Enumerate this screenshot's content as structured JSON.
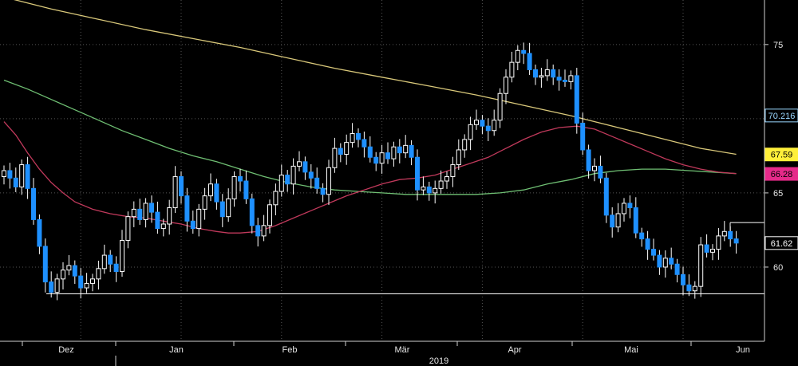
{
  "chart_data": {
    "type": "candlestick",
    "year_label": "2019",
    "x_ticks": [
      "Dez",
      "Jan",
      "Feb",
      "Mär",
      "Apr",
      "Mai",
      "Jun"
    ],
    "y_ticks": [
      60,
      65,
      70,
      75
    ],
    "ylim": [
      55,
      78
    ],
    "grid": true,
    "colors": {
      "up": "#ffffff",
      "down": "#1e90ff",
      "ma_short": "#c0395b",
      "ma_mid": "#6fbf73",
      "ma_long": "#d9c87a",
      "support": "#ffffff",
      "grid": "#555555"
    },
    "price_tags": [
      {
        "value": "70.216",
        "level": 70.216,
        "bg": "#000000",
        "fg": "#9ad7ff",
        "border": "#9ad7ff"
      },
      {
        "value": "67.59",
        "level": 67.59,
        "bg": "#ffef3a",
        "fg": "#000000",
        "border": "#ffef3a"
      },
      {
        "value": "66.28",
        "level": 66.28,
        "bg": "#e62a8a",
        "fg": "#000000",
        "border": "#e62a8a"
      },
      {
        "value": "61.62",
        "level": 61.62,
        "bg": "#000000",
        "fg": "#ffffff",
        "border": "#ffffff"
      }
    ],
    "support_level": 58.2,
    "resistance_level": 63.0,
    "closes": [
      66.5,
      66.0,
      65.4,
      66.9,
      65.3,
      63.2,
      61.4,
      59.0,
      58.3,
      59.2,
      59.8,
      60.1,
      59.4,
      58.6,
      58.9,
      59.2,
      59.9,
      60.8,
      60.2,
      59.7,
      61.8,
      63.4,
      63.9,
      63.2,
      64.3,
      63.7,
      62.6,
      62.9,
      64.0,
      66.1,
      64.8,
      63.1,
      62.6,
      63.9,
      64.8,
      65.6,
      64.4,
      63.4,
      64.6,
      66.1,
      65.8,
      64.6,
      62.8,
      62.1,
      62.8,
      64.2,
      65.1,
      66.2,
      65.6,
      66.8,
      67.1,
      66.4,
      66.0,
      65.3,
      64.9,
      66.7,
      68.0,
      67.6,
      68.4,
      69.0,
      68.6,
      68.1,
      67.4,
      67.0,
      67.7,
      67.3,
      68.1,
      67.7,
      68.2,
      67.4,
      65.2,
      65.4,
      65.0,
      65.3,
      65.8,
      66.1,
      66.9,
      67.9,
      68.6,
      69.6,
      69.9,
      69.5,
      69.2,
      69.9,
      71.7,
      72.8,
      73.8,
      74.6,
      74.4,
      73.3,
      72.8,
      72.9,
      73.3,
      72.8,
      72.6,
      72.5,
      72.9,
      69.7,
      67.9,
      66.5,
      66.8,
      66.0,
      63.5,
      62.7,
      63.6,
      64.3,
      64.0,
      62.3,
      61.9,
      61.2,
      60.8,
      60.0,
      60.6,
      60.2,
      59.5,
      58.8,
      58.4,
      58.7,
      61.5,
      61.0,
      61.2,
      62.1,
      62.4,
      61.9,
      61.62
    ],
    "ma_short": [
      [
        0,
        69.8
      ],
      [
        2,
        68.9
      ],
      [
        4,
        67.7
      ],
      [
        6,
        66.6
      ],
      [
        8,
        65.7
      ],
      [
        10,
        65.0
      ],
      [
        12,
        64.4
      ],
      [
        15,
        63.9
      ],
      [
        18,
        63.6
      ],
      [
        21,
        63.4
      ],
      [
        24,
        63.3
      ],
      [
        27,
        63.1
      ],
      [
        30,
        62.9
      ],
      [
        33,
        62.6
      ],
      [
        36,
        62.4
      ],
      [
        38,
        62.3
      ],
      [
        40,
        62.3
      ],
      [
        43,
        62.4
      ],
      [
        46,
        62.8
      ],
      [
        49,
        63.3
      ],
      [
        52,
        63.8
      ],
      [
        55,
        64.3
      ],
      [
        58,
        64.8
      ],
      [
        61,
        65.2
      ],
      [
        64,
        65.6
      ],
      [
        67,
        65.9
      ],
      [
        70,
        66.0
      ],
      [
        73,
        66.2
      ],
      [
        76,
        66.6
      ],
      [
        79,
        67.0
      ],
      [
        82,
        67.4
      ],
      [
        85,
        68.0
      ],
      [
        88,
        68.6
      ],
      [
        91,
        69.1
      ],
      [
        94,
        69.4
      ],
      [
        97,
        69.5
      ],
      [
        100,
        69.3
      ],
      [
        103,
        68.8
      ],
      [
        106,
        68.3
      ],
      [
        109,
        67.8
      ],
      [
        112,
        67.3
      ],
      [
        115,
        66.9
      ],
      [
        118,
        66.6
      ],
      [
        121,
        66.4
      ],
      [
        124,
        66.3
      ]
    ],
    "ma_mid": [
      [
        0,
        72.6
      ],
      [
        4,
        72.0
      ],
      [
        8,
        71.3
      ],
      [
        12,
        70.6
      ],
      [
        16,
        69.9
      ],
      [
        20,
        69.2
      ],
      [
        24,
        68.6
      ],
      [
        28,
        68.0
      ],
      [
        32,
        67.5
      ],
      [
        36,
        67.1
      ],
      [
        40,
        66.6
      ],
      [
        44,
        66.1
      ],
      [
        48,
        65.7
      ],
      [
        52,
        65.4
      ],
      [
        56,
        65.2
      ],
      [
        60,
        65.1
      ],
      [
        64,
        65.0
      ],
      [
        68,
        64.9
      ],
      [
        72,
        64.9
      ],
      [
        76,
        64.9
      ],
      [
        80,
        64.9
      ],
      [
        84,
        65.0
      ],
      [
        88,
        65.2
      ],
      [
        92,
        65.6
      ],
      [
        96,
        65.9
      ],
      [
        100,
        66.3
      ],
      [
        104,
        66.5
      ],
      [
        108,
        66.6
      ],
      [
        112,
        66.6
      ],
      [
        116,
        66.5
      ],
      [
        120,
        66.4
      ],
      [
        124,
        66.3
      ]
    ],
    "ma_long": [
      [
        0,
        78.2
      ],
      [
        8,
        77.4
      ],
      [
        16,
        76.7
      ],
      [
        24,
        76.0
      ],
      [
        32,
        75.4
      ],
      [
        40,
        74.8
      ],
      [
        48,
        74.1
      ],
      [
        56,
        73.4
      ],
      [
        64,
        72.8
      ],
      [
        72,
        72.2
      ],
      [
        80,
        71.6
      ],
      [
        88,
        70.9
      ],
      [
        96,
        70.2
      ],
      [
        104,
        69.4
      ],
      [
        112,
        68.6
      ],
      [
        118,
        68.0
      ],
      [
        124,
        67.6
      ]
    ]
  }
}
